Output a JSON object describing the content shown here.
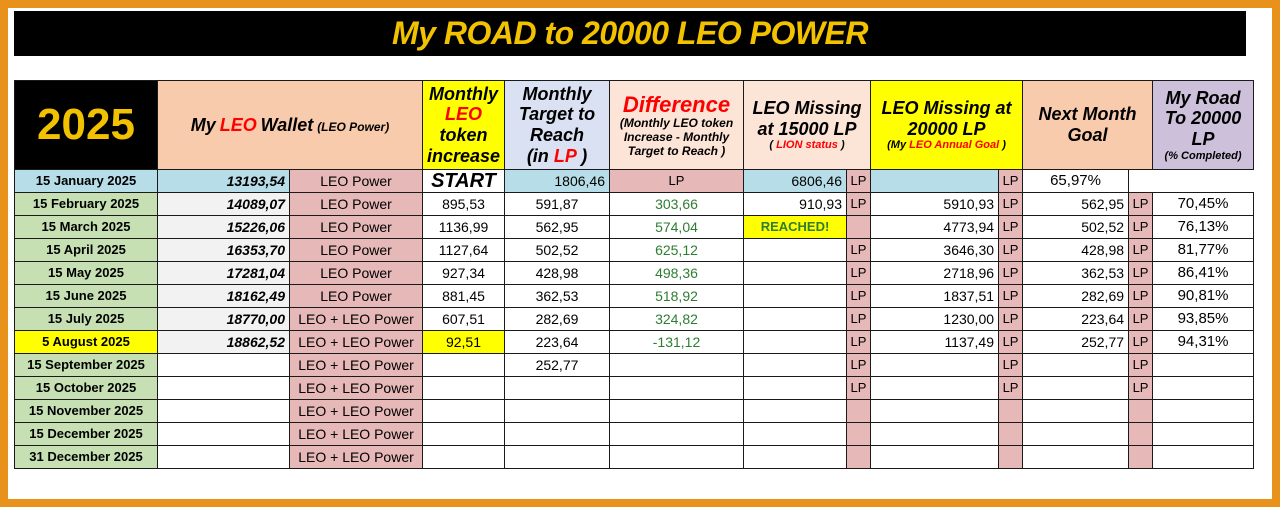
{
  "title": "My ROAD to 20000 LEO POWER",
  "header": {
    "year": "2025",
    "wallet": {
      "prefix": "My",
      "leo": "LEO",
      "suffix": "Wallet",
      "note": "(LEO Power)"
    },
    "monthly_increase": {
      "line1": "Monthly",
      "leo": "LEO",
      "line2": "token increase"
    },
    "monthly_target": {
      "text": "Monthly Target to Reach",
      "unit_open": "(in",
      "unit": "LP",
      "unit_close": ")"
    },
    "difference": {
      "title": "Difference",
      "note": "(Monthly LEO token Increase - Monthly Target to Reach )"
    },
    "missing_15000": {
      "text": "LEO Missing at 15000 LP",
      "note_open": "(",
      "note": "LION status",
      "note_close": ")"
    },
    "missing_20000": {
      "text": "LEO Missing at 20000 LP",
      "note_open": "(My",
      "note": "LEO Annual Goal",
      "note_close": ")"
    },
    "next_goal": "Next Month Goal",
    "road": {
      "text": "My Road To 20000 LP",
      "note": "(% Completed)"
    }
  },
  "lp_label": "LP",
  "rows": [
    {
      "date": "15 January 2025",
      "wallet": "13193,54",
      "type": "LEO Power",
      "increase": "START",
      "target": "",
      "diff": "",
      "m15": "1806,46",
      "m20": "6806,46",
      "next": "",
      "road": "65,97%"
    },
    {
      "date": "15 February 2025",
      "wallet": "14089,07",
      "type": "LEO Power",
      "increase": "895,53",
      "target": "591,87",
      "diff": "303,66",
      "m15": "910,93",
      "m20": "5910,93",
      "next": "562,95",
      "road": "70,45%"
    },
    {
      "date": "15 March 2025",
      "wallet": "15226,06",
      "type": "LEO Power",
      "increase": "1136,99",
      "target": "562,95",
      "diff": "574,04",
      "m15": "REACHED!",
      "m20": "4773,94",
      "next": "502,52",
      "road": "76,13%"
    },
    {
      "date": "15 April 2025",
      "wallet": "16353,70",
      "type": "LEO Power",
      "increase": "1127,64",
      "target": "502,52",
      "diff": "625,12",
      "m15": "",
      "m20": "3646,30",
      "next": "428,98",
      "road": "81,77%"
    },
    {
      "date": "15 May 2025",
      "wallet": "17281,04",
      "type": "LEO Power",
      "increase": "927,34",
      "target": "428,98",
      "diff": "498,36",
      "m15": "",
      "m20": "2718,96",
      "next": "362,53",
      "road": "86,41%"
    },
    {
      "date": "15 June 2025",
      "wallet": "18162,49",
      "type": "LEO Power",
      "increase": "881,45",
      "target": "362,53",
      "diff": "518,92",
      "m15": "",
      "m20": "1837,51",
      "next": "282,69",
      "road": "90,81%"
    },
    {
      "date": "15 July 2025",
      "wallet": "18770,00",
      "type": "LEO + LEO Power",
      "increase": "607,51",
      "target": "282,69",
      "diff": "324,82",
      "m15": "",
      "m20": "1230,00",
      "next": "223,64",
      "road": "93,85%"
    },
    {
      "date": "5 August 2025",
      "wallet": "18862,52",
      "type": "LEO + LEO Power",
      "increase": "92,51",
      "target": "223,64",
      "diff": "-131,12",
      "m15": "",
      "m20": "1137,49",
      "next": "252,77",
      "road": "94,31%"
    },
    {
      "date": "15 September 2025",
      "wallet": "",
      "type": "LEO + LEO Power",
      "increase": "",
      "target": "252,77",
      "diff": "",
      "m15": "",
      "m20": "",
      "next": "",
      "road": ""
    },
    {
      "date": "15 October 2025",
      "wallet": "",
      "type": "LEO + LEO Power",
      "increase": "",
      "target": "",
      "diff": "",
      "m15": "",
      "m20": "",
      "next": "",
      "road": ""
    },
    {
      "date": "15 November 2025",
      "wallet": "",
      "type": "LEO + LEO Power",
      "increase": "",
      "target": "",
      "diff": "",
      "m15": "",
      "m20": "",
      "next": "",
      "road": ""
    },
    {
      "date": "15 December 2025",
      "wallet": "",
      "type": "LEO + LEO Power",
      "increase": "",
      "target": "",
      "diff": "",
      "m15": "",
      "m20": "",
      "next": "",
      "road": ""
    },
    {
      "date": "31 December 2025",
      "wallet": "",
      "type": "LEO + LEO Power",
      "increase": "",
      "target": "",
      "diff": "",
      "m15": "",
      "m20": "",
      "next": "",
      "road": ""
    }
  ],
  "colors": {
    "accent": "#f2c200",
    "border": "#e8921c",
    "positive": "#2e7d32",
    "highlight": "#ffff00"
  }
}
